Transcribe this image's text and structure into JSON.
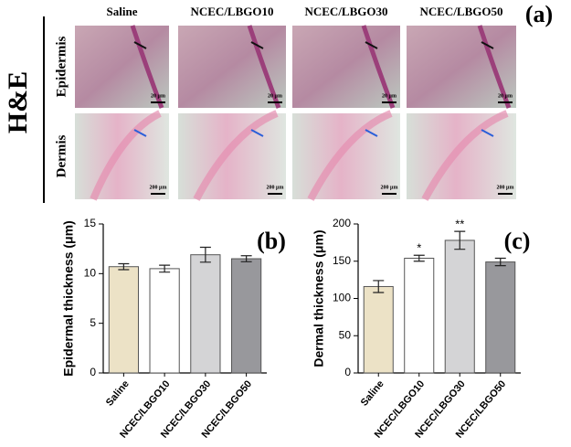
{
  "panel_a": {
    "panel_label": "(a)",
    "stain": "H&E",
    "rows": [
      "Epidermis",
      "Dermis"
    ],
    "columns": [
      "Saline",
      "NCEC/LBGO10",
      "NCEC/LBGO30",
      "NCEC/LBGO50"
    ],
    "scale_bars": [
      "20 μm",
      "200 μm"
    ]
  },
  "chart_data": [
    {
      "type": "bar",
      "panel_label": "(b)",
      "y_label": "Epidermal thickness (μm)",
      "categories": [
        "Saline",
        "NCEC/LBGO10",
        "NCEC/LBGO30",
        "NCEC/LBGO50"
      ],
      "series": [
        {
          "values": [
            10.7,
            10.5,
            11.9,
            11.5
          ],
          "errors": [
            0.3,
            0.35,
            0.75,
            0.3
          ],
          "colors": [
            "#ece2c6",
            "#ffffff",
            "#d4d4d6",
            "#98989c"
          ]
        }
      ],
      "ylim": [
        0,
        15
      ],
      "yticks": [
        0,
        5,
        10,
        15
      ]
    },
    {
      "type": "bar",
      "panel_label": "(c)",
      "y_label": "Dermal thickness (μm)",
      "categories": [
        "Saline",
        "NCEC/LBGO10",
        "NCEC/LBGO30",
        "NCEC/LBGO50"
      ],
      "series": [
        {
          "values": [
            116,
            154,
            178,
            149
          ],
          "errors": [
            8,
            4,
            12,
            5
          ],
          "colors": [
            "#ece2c6",
            "#ffffff",
            "#d4d4d6",
            "#98989c"
          ]
        }
      ],
      "ylim": [
        0,
        200
      ],
      "yticks": [
        0,
        50,
        100,
        150,
        200
      ],
      "annotations": [
        {
          "category": "NCEC/LBGO10",
          "text": "*"
        },
        {
          "category": "NCEC/LBGO30",
          "text": "**"
        }
      ]
    }
  ]
}
